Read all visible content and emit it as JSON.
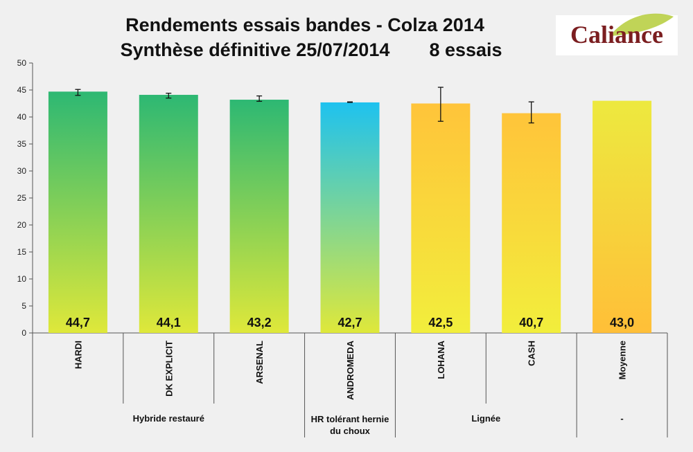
{
  "chart_data": {
    "type": "bar",
    "title": "Rendements essais bandes - Colza 2014",
    "subtitle": "Synthèse définitive 25/07/2014",
    "subtitle_note": "8 essais",
    "ylim": [
      0,
      50
    ],
    "yticks": [
      0,
      5,
      10,
      15,
      20,
      25,
      30,
      35,
      40,
      45,
      50
    ],
    "grid": false,
    "categories": [
      "HARDI",
      "DK EXPLICIT",
      "ARSENAL",
      "ANDROMEDA",
      "LOHANA",
      "CASH",
      "Moyenne"
    ],
    "values": [
      44.7,
      44.1,
      43.2,
      42.7,
      42.5,
      40.7,
      43.0
    ],
    "value_labels": [
      "44,7",
      "44,1",
      "43,2",
      "42,7",
      "42,5",
      "40,7",
      "43,0"
    ],
    "error_low": [
      44.0,
      43.5,
      42.9,
      42.7,
      39.2,
      38.9,
      null
    ],
    "error_high": [
      45.1,
      44.4,
      43.9,
      42.8,
      45.5,
      42.8,
      null
    ],
    "groups": [
      {
        "label": "Hybride restauré",
        "start": 0,
        "end": 2
      },
      {
        "label": "HR tolérant hernie du choux",
        "lines": [
          "HR tolérant hernie",
          "du choux"
        ],
        "start": 3,
        "end": 3
      },
      {
        "label": "Lignée",
        "start": 4,
        "end": 5
      },
      {
        "label": "-",
        "start": 6,
        "end": 6
      }
    ],
    "bar_colors": {
      "hybride": {
        "top": "#2db873",
        "bottom": "#dfe83a"
      },
      "hr": {
        "top": "#1ec2ef",
        "bottom": "#dfe83a"
      },
      "lignee": {
        "top": "#ffc43a",
        "bottom": "#f2ee3c"
      },
      "moyenne": {
        "top": "#ede93f",
        "bottom": "#ffbf38"
      }
    },
    "bar_color_keys": [
      "hybride",
      "hybride",
      "hybride",
      "hr",
      "lignee",
      "lignee",
      "moyenne"
    ]
  },
  "logo": {
    "text": "Caliance",
    "text_color": "#7b1e20",
    "leaf_color": "#b5cc3a"
  }
}
